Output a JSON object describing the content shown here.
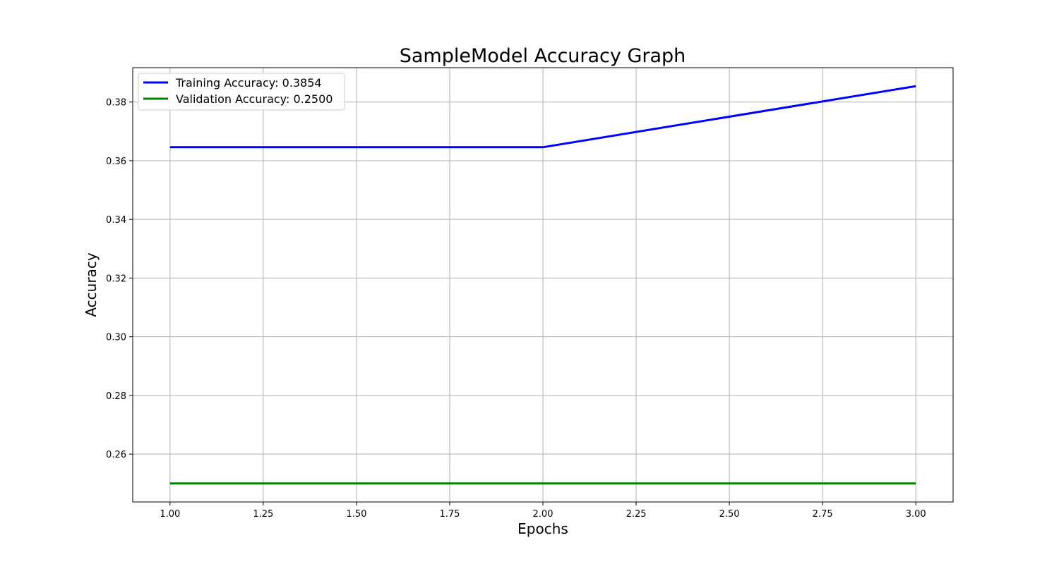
{
  "chart_data": {
    "type": "line",
    "title": "SampleModel Accuracy Graph",
    "xlabel": "Epochs",
    "ylabel": "Accuracy",
    "xlim": [
      0.9,
      3.1
    ],
    "ylim": [
      0.2437,
      0.3917
    ],
    "grid": true,
    "legend_position": "top-left",
    "x_ticks": [
      1.0,
      1.25,
      1.5,
      1.75,
      2.0,
      2.25,
      2.5,
      2.75,
      3.0
    ],
    "x_tick_labels": [
      "1.00",
      "1.25",
      "1.50",
      "1.75",
      "2.00",
      "2.25",
      "2.50",
      "2.75",
      "3.00"
    ],
    "y_ticks": [
      0.26,
      0.28,
      0.3,
      0.32,
      0.34,
      0.36,
      0.38
    ],
    "y_tick_labels": [
      "0.26",
      "0.28",
      "0.30",
      "0.32",
      "0.34",
      "0.36",
      "0.38"
    ],
    "x": [
      1,
      2,
      3
    ],
    "series": [
      {
        "name": "Training Accuracy: 0.3854",
        "color": "#0000ff",
        "values": [
          0.3646,
          0.3646,
          0.3854
        ]
      },
      {
        "name": "Validation Accuracy: 0.2500",
        "color": "#008000",
        "values": [
          0.25,
          0.25,
          0.25
        ]
      }
    ]
  }
}
